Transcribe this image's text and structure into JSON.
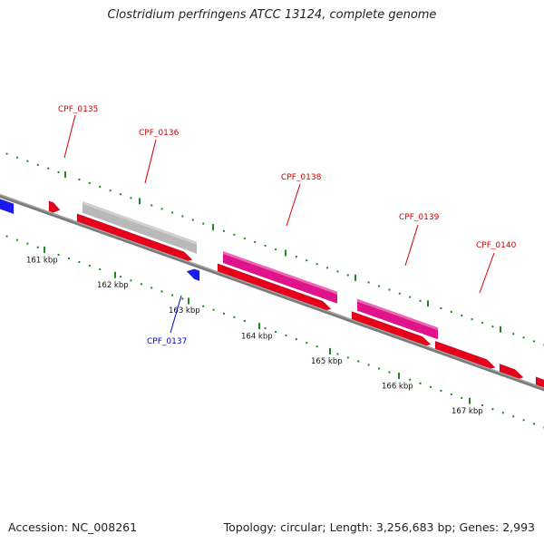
{
  "title": "Clostridium perfringens ATCC 13124, complete genome",
  "accession": "Accession: NC_008261",
  "summary": "Topology: circular; Length: 3,256,683 bp; Genes: 2,993",
  "colors": {
    "backbone": "#7a7a7a",
    "tick": "#1e8a1e",
    "forward_cds": "#e8001a",
    "reverse_cds": "#1a1aee",
    "gene_highlight": "#e0148a",
    "gene_other": "#b9b9b9",
    "label_forward": "#cc0000",
    "label_reverse": "#0000cc"
  },
  "scale": {
    "labels": [
      "161 kbp",
      "162 kbp",
      "163 kbp",
      "164 kbp",
      "165 kbp",
      "166 kbp",
      "167 kbp"
    ]
  },
  "gene_labels": [
    {
      "text": "CPF_0135",
      "strand": "forward"
    },
    {
      "text": "CPF_0136",
      "strand": "forward"
    },
    {
      "text": "CPF_0137",
      "strand": "reverse"
    },
    {
      "text": "CPF_0138",
      "strand": "forward"
    },
    {
      "text": "CPF_0139",
      "strand": "forward"
    },
    {
      "text": "CPF_0140",
      "strand": "forward"
    }
  ]
}
